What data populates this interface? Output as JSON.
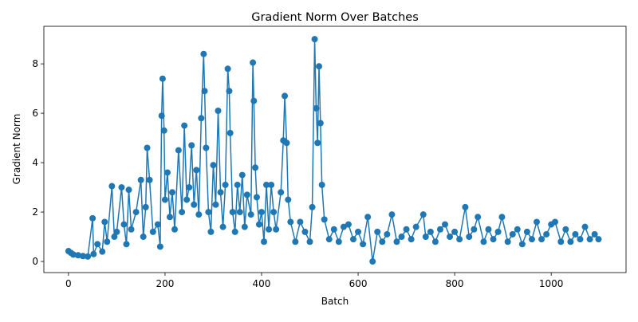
{
  "chart_data": {
    "type": "line",
    "title": "Gradient Norm Over Batches",
    "x_label": "Batch",
    "y_label": "Gradient Norm",
    "x": [
      0,
      5,
      10,
      20,
      30,
      40,
      50,
      52,
      60,
      70,
      75,
      80,
      90,
      95,
      100,
      110,
      115,
      120,
      125,
      130,
      140,
      150,
      155,
      160,
      163,
      168,
      175,
      185,
      190,
      193,
      195,
      198,
      200,
      205,
      210,
      215,
      220,
      228,
      235,
      240,
      245,
      250,
      255,
      260,
      265,
      270,
      275,
      280,
      282,
      285,
      290,
      295,
      300,
      305,
      310,
      315,
      320,
      325,
      330,
      333,
      335,
      340,
      345,
      350,
      355,
      360,
      365,
      370,
      378,
      382,
      384,
      387,
      390,
      395,
      400,
      405,
      410,
      415,
      420,
      425,
      430,
      440,
      445,
      448,
      452,
      455,
      460,
      470,
      480,
      490,
      500,
      505,
      510,
      513,
      516,
      519,
      522,
      525,
      530,
      540,
      550,
      560,
      570,
      580,
      590,
      600,
      610,
      620,
      630,
      640,
      650,
      660,
      670,
      680,
      690,
      700,
      710,
      720,
      735,
      740,
      750,
      760,
      770,
      780,
      790,
      800,
      810,
      822,
      830,
      840,
      848,
      860,
      870,
      880,
      890,
      898,
      910,
      920,
      930,
      940,
      950,
      960,
      970,
      980,
      990,
      1000,
      1008,
      1020,
      1030,
      1040,
      1050,
      1060,
      1070,
      1080,
      1090,
      1098
    ],
    "series": [
      {
        "name": "Gradient Norm",
        "color": "#1f77b4",
        "values": [
          0.42,
          0.35,
          0.28,
          0.25,
          0.22,
          0.2,
          1.75,
          0.3,
          0.7,
          0.4,
          1.6,
          0.8,
          3.05,
          1.0,
          1.2,
          3.0,
          1.5,
          0.7,
          2.9,
          1.3,
          2.0,
          3.3,
          1.0,
          2.2,
          4.6,
          3.3,
          1.2,
          1.5,
          0.6,
          5.9,
          7.4,
          5.3,
          2.5,
          3.6,
          1.8,
          2.8,
          1.3,
          4.5,
          2.0,
          5.5,
          2.5,
          3.0,
          4.7,
          2.3,
          3.7,
          1.9,
          5.8,
          8.4,
          6.9,
          4.6,
          2.0,
          1.2,
          3.9,
          2.3,
          6.1,
          2.8,
          1.4,
          3.1,
          7.8,
          6.9,
          5.2,
          2.0,
          1.2,
          3.1,
          2.0,
          3.5,
          1.4,
          2.7,
          1.9,
          8.05,
          6.5,
          3.8,
          2.6,
          1.5,
          2.0,
          0.8,
          3.1,
          1.3,
          3.1,
          2.0,
          1.3,
          2.8,
          4.9,
          6.7,
          4.8,
          2.5,
          1.6,
          0.8,
          1.6,
          1.2,
          0.8,
          2.2,
          9.0,
          6.2,
          4.8,
          7.9,
          5.6,
          3.1,
          1.7,
          0.9,
          1.3,
          0.8,
          1.4,
          1.5,
          0.9,
          1.2,
          0.7,
          1.8,
          0.0,
          1.2,
          0.8,
          1.1,
          1.9,
          0.8,
          1.0,
          1.3,
          0.9,
          1.4,
          1.9,
          1.0,
          1.2,
          0.8,
          1.3,
          1.5,
          1.0,
          1.2,
          0.9,
          2.2,
          1.0,
          1.3,
          1.8,
          0.8,
          1.3,
          0.9,
          1.2,
          1.8,
          0.8,
          1.1,
          1.3,
          0.7,
          1.2,
          0.9,
          1.6,
          0.9,
          1.1,
          1.5,
          1.6,
          0.8,
          1.3,
          0.8,
          1.1,
          0.9,
          1.4,
          0.9,
          1.1,
          0.9
        ]
      }
    ],
    "xlim": [
      -51,
      1155
    ],
    "ylim": [
      -0.45,
      9.52
    ],
    "xticks": [
      0,
      200,
      400,
      600,
      800,
      1000
    ],
    "yticks": [
      0,
      2,
      4,
      6,
      8
    ],
    "grid": false
  }
}
